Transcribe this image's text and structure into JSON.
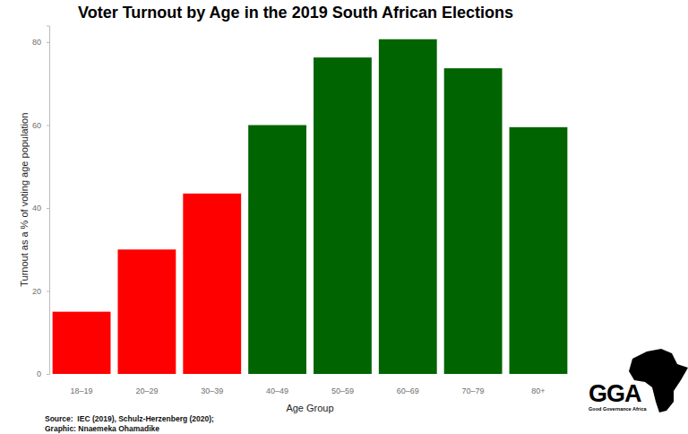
{
  "chart_data": {
    "type": "bar",
    "title": "Voter Turnout by Age in the 2019 South African Elections",
    "x_label": "Age Group",
    "y_label": "Turnout as a % of voting age population",
    "categories": [
      "18–19",
      "20–29",
      "30–39",
      "40–49",
      "50–59",
      "60–69",
      "70–79",
      "80+"
    ],
    "values": [
      15,
      30,
      43.5,
      60,
      76.3,
      80.7,
      73.7,
      59.5
    ],
    "colors": [
      "#ff0000",
      "#ff0000",
      "#ff0000",
      "#006400",
      "#006400",
      "#006400",
      "#006400",
      "#006400"
    ],
    "ylim": [
      0,
      84
    ],
    "yticks": [
      0,
      20,
      40,
      60,
      80
    ],
    "grid": false,
    "annotations": [
      "Source:  IEC (2019), Schulz-Herzenberg (2020);",
      "Graphic: Nnaemeka Ohamadike",
      "GGA",
      "Good Governance Africa"
    ]
  }
}
